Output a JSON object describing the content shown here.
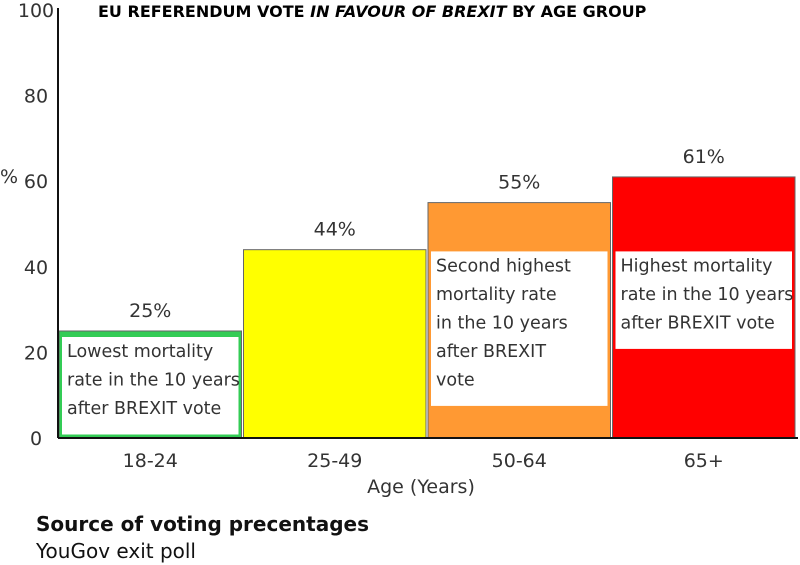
{
  "chart_data": {
    "type": "bar",
    "title_parts": [
      "EU REFERENDUM VOTE ",
      "IN FAVOUR OF BREXIT",
      " BY AGE GROUP"
    ],
    "xlabel": "Age (Years)",
    "ylabel": "%",
    "ylim": [
      0,
      100
    ],
    "yticks": [
      0,
      20,
      40,
      60,
      80,
      100
    ],
    "categories": [
      "18-24",
      "25-49",
      "50-64",
      "65+"
    ],
    "values": [
      25,
      44,
      55,
      61
    ],
    "value_labels": [
      "25%",
      "44%",
      "55%",
      "61%"
    ],
    "colors": [
      "#33cc55",
      "#ffff00",
      "#ff9933",
      "#ff0000"
    ],
    "annotations": [
      {
        "category": "18-24",
        "lines": [
          "Lowest mortality",
          "rate in the 10 years",
          "after BREXIT vote"
        ]
      },
      {
        "category": "50-64",
        "lines": [
          "Second highest",
          "mortality rate",
          " in the 10 years",
          "after BREXIT",
          "vote"
        ]
      },
      {
        "category": "65+",
        "lines": [
          "Highest mortality",
          "rate in the 10 years",
          "after BREXIT vote"
        ]
      }
    ]
  },
  "source": {
    "heading": "Source of voting precentages",
    "text": "YouGov exit poll"
  }
}
